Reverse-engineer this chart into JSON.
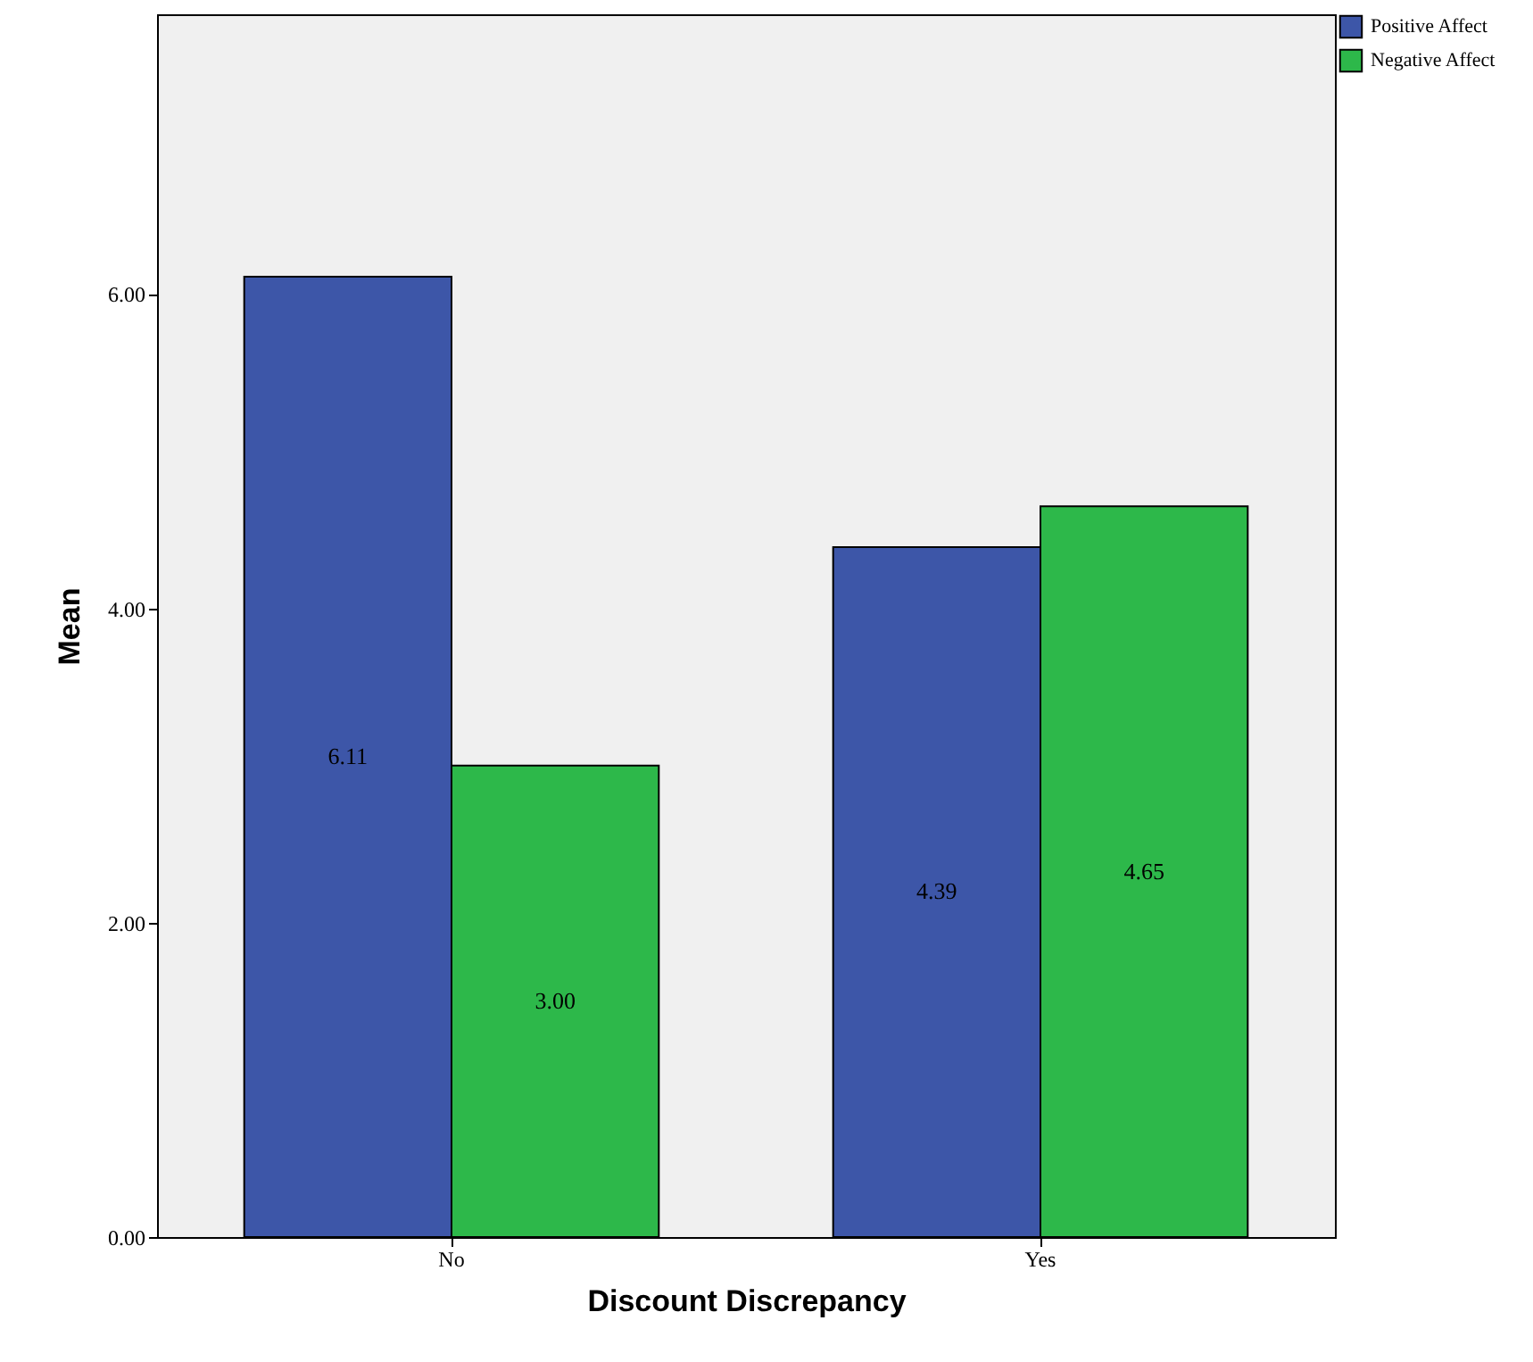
{
  "chart_data": {
    "type": "bar",
    "xlabel": "Discount Discrepancy",
    "ylabel": "Mean",
    "categories": [
      "No",
      "Yes"
    ],
    "series": [
      {
        "name": "Positive Affect",
        "color": "#3d56a8",
        "values": [
          6.11,
          4.39
        ],
        "value_labels": [
          "6.11",
          "4.39"
        ]
      },
      {
        "name": "Negative Affect",
        "color": "#2db84a",
        "values": [
          3.0,
          4.65
        ],
        "value_labels": [
          "3.00",
          "4.65"
        ]
      }
    ],
    "ylim": [
      0,
      7.78
    ],
    "yticks": [
      {
        "value": 0,
        "label": "0.00"
      },
      {
        "value": 2,
        "label": "2.00"
      },
      {
        "value": 4,
        "label": "4.00"
      },
      {
        "value": 6,
        "label": "6.00"
      }
    ],
    "grid": false,
    "legend": "top right"
  }
}
